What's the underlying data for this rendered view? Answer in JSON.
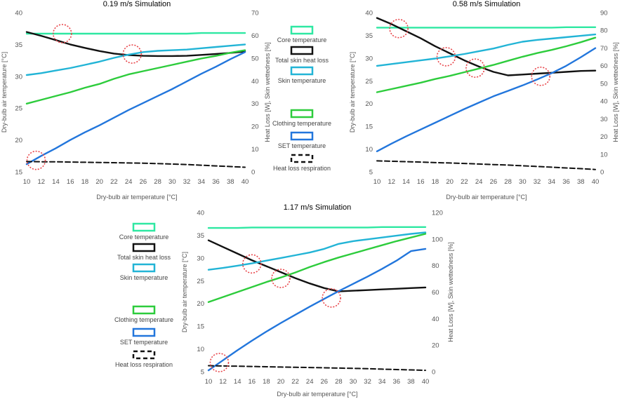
{
  "legend": [
    {
      "id": "core",
      "label": "Core temperature",
      "color": "#2ee8a2"
    },
    {
      "id": "skin_heat_loss",
      "label": "Total skin heat loss",
      "color": "#111111"
    },
    {
      "id": "skin_temp",
      "label": "Skin temperature",
      "color": "#22b4d6"
    },
    {
      "id": "clothing",
      "label": "Clothing temperature",
      "color": "#2dcc3c"
    },
    {
      "id": "set",
      "label": "SET temperature",
      "color": "#2276dc"
    },
    {
      "id": "respiration",
      "label": "Heat loss respiration",
      "color": "#111111",
      "dashed": true
    }
  ],
  "chart_data": [
    {
      "type": "line",
      "title": "0.19 m/s Simulation",
      "xlabel": "Dry-bulb air temperature [°C]",
      "ylabel": "Dry-bulb air temperature [°C]",
      "y2label": "Heat Loss [W], Skin wettedness [%]",
      "x": [
        10,
        12,
        14,
        16,
        18,
        20,
        22,
        24,
        26,
        28,
        30,
        32,
        34,
        36,
        38,
        40
      ],
      "xticks": [
        "10",
        "12",
        "14",
        "16",
        "18",
        "20",
        "22",
        "24",
        "26",
        "28",
        "30",
        "32",
        "34",
        "36",
        "38",
        "40"
      ],
      "ylim": [
        15,
        40
      ],
      "yticks": [
        "15",
        "20",
        "25",
        "30",
        "35",
        "40"
      ],
      "y2lim": [
        0,
        70
      ],
      "y2ticks": [
        "0",
        "10",
        "20",
        "30",
        "40",
        "50",
        "60",
        "70"
      ],
      "series": [
        {
          "id": "core",
          "axis": "left",
          "values": [
            36.7,
            36.7,
            36.7,
            36.7,
            36.7,
            36.7,
            36.7,
            36.7,
            36.7,
            36.7,
            36.7,
            36.7,
            36.8,
            36.8,
            36.8,
            36.8
          ]
        },
        {
          "id": "skin_heat_loss",
          "axis": "right",
          "values": [
            61.5,
            59.8,
            57.9,
            56.0,
            54.5,
            53.1,
            52.0,
            51.3,
            51.0,
            50.9,
            50.9,
            51.0,
            51.4,
            51.8,
            52.3,
            52.9
          ]
        },
        {
          "id": "skin_temp",
          "axis": "left",
          "values": [
            30.2,
            30.5,
            30.9,
            31.3,
            31.8,
            32.3,
            32.9,
            33.4,
            33.8,
            34.0,
            34.1,
            34.2,
            34.4,
            34.6,
            34.8,
            35.0
          ]
        },
        {
          "id": "clothing",
          "axis": "left",
          "values": [
            25.7,
            26.3,
            26.9,
            27.5,
            28.2,
            28.8,
            29.6,
            30.3,
            30.8,
            31.3,
            31.8,
            32.3,
            32.8,
            33.2,
            33.7,
            34.1
          ]
        },
        {
          "id": "set",
          "axis": "left",
          "values": [
            16.2,
            17.5,
            18.7,
            20.0,
            21.2,
            22.3,
            23.5,
            24.7,
            25.8,
            26.9,
            28.0,
            29.2,
            30.4,
            31.5,
            32.7,
            33.8
          ]
        },
        {
          "id": "respiration",
          "axis": "right",
          "values": [
            4.5,
            4.4,
            4.4,
            4.3,
            4.2,
            4.1,
            4.0,
            3.9,
            3.8,
            3.6,
            3.4,
            3.2,
            2.9,
            2.6,
            2.3,
            2.0
          ]
        }
      ],
      "circles": [
        {
          "x": 14.9,
          "y": 36.7
        },
        {
          "x": 24.5,
          "y": 33.5
        },
        {
          "x": 11.3,
          "y": 16.8
        }
      ]
    },
    {
      "type": "line",
      "title": "0.58 m/s Simulation",
      "xlabel": "Dry-bulb air temperature [°C]",
      "ylabel": "Dry-bulb air temperature [°C]",
      "y2label": "Heat Loss [W], Skin wettedness [%]",
      "x": [
        10,
        12,
        14,
        16,
        18,
        20,
        22,
        24,
        26,
        28,
        30,
        32,
        34,
        36,
        38,
        40
      ],
      "xticks": [
        "10",
        "12",
        "14",
        "16",
        "18",
        "20",
        "22",
        "24",
        "26",
        "28",
        "30",
        "32",
        "34",
        "36",
        "38",
        "40"
      ],
      "ylim": [
        5,
        40
      ],
      "yticks": [
        "5",
        "10",
        "15",
        "20",
        "25",
        "30",
        "35",
        "40"
      ],
      "y2lim": [
        0,
        90
      ],
      "y2ticks": [
        "0",
        "10",
        "20",
        "30",
        "40",
        "50",
        "60",
        "70",
        "80",
        "90"
      ],
      "series": [
        {
          "id": "core",
          "axis": "left",
          "values": [
            36.7,
            36.7,
            36.7,
            36.7,
            36.7,
            36.7,
            36.7,
            36.7,
            36.7,
            36.7,
            36.7,
            36.7,
            36.7,
            36.8,
            36.8,
            36.8
          ]
        },
        {
          "id": "skin_heat_loss",
          "axis": "right",
          "values": [
            87.0,
            83.5,
            79.5,
            75.5,
            71.0,
            67.0,
            63.0,
            59.5,
            56.5,
            54.5,
            55.0,
            55.5,
            56.0,
            56.5,
            57.0,
            57.2
          ]
        },
        {
          "id": "skin_temp",
          "axis": "left",
          "values": [
            28.3,
            28.7,
            29.1,
            29.5,
            29.9,
            30.4,
            30.9,
            31.5,
            32.1,
            32.9,
            33.6,
            34.0,
            34.3,
            34.6,
            34.9,
            35.2
          ]
        },
        {
          "id": "clothing",
          "axis": "left",
          "values": [
            22.5,
            23.2,
            23.9,
            24.6,
            25.4,
            26.1,
            26.9,
            27.7,
            28.5,
            29.4,
            30.3,
            31.1,
            31.8,
            32.6,
            33.5,
            34.5
          ]
        },
        {
          "id": "set",
          "axis": "left",
          "values": [
            9.5,
            11.2,
            12.8,
            14.3,
            15.8,
            17.3,
            18.8,
            20.2,
            21.6,
            22.8,
            24.0,
            25.3,
            26.7,
            28.3,
            30.2,
            32.2
          ]
        },
        {
          "id": "respiration",
          "axis": "right",
          "values": [
            6.2,
            6.0,
            5.7,
            5.5,
            5.2,
            5.0,
            4.7,
            4.4,
            4.1,
            3.8,
            3.4,
            3.0,
            2.6,
            2.2,
            1.8,
            1.3
          ]
        }
      ],
      "circles": [
        {
          "x": 13.0,
          "y": 36.5
        },
        {
          "x": 19.5,
          "y": 30.3
        },
        {
          "x": 23.5,
          "y": 27.8
        },
        {
          "x": 32.5,
          "y": 26.0
        }
      ]
    },
    {
      "type": "line",
      "title": "1.17 m/s Simulation",
      "xlabel": "Dry-bulb air temperature [°C]",
      "ylabel": "Dry-bulb air temperature [°C]",
      "y2label": "Heat Loss [W], Skin wettedness [%]",
      "x": [
        10,
        12,
        14,
        16,
        18,
        20,
        22,
        24,
        26,
        28,
        30,
        32,
        34,
        36,
        38,
        40
      ],
      "xticks": [
        "10",
        "12",
        "14",
        "16",
        "18",
        "20",
        "22",
        "24",
        "26",
        "28",
        "30",
        "32",
        "34",
        "36",
        "38",
        "40"
      ],
      "ylim": [
        5,
        40
      ],
      "yticks": [
        "5",
        "10",
        "15",
        "20",
        "25",
        "30",
        "35",
        "40"
      ],
      "y2lim": [
        0,
        120
      ],
      "y2ticks": [
        "0",
        "20",
        "40",
        "60",
        "80",
        "100",
        "120"
      ],
      "series": [
        {
          "id": "core",
          "axis": "left",
          "values": [
            36.6,
            36.6,
            36.6,
            36.7,
            36.7,
            36.7,
            36.7,
            36.7,
            36.7,
            36.7,
            36.7,
            36.7,
            36.8,
            36.8,
            36.8,
            36.8
          ]
        },
        {
          "id": "skin_heat_loss",
          "axis": "right",
          "values": [
            99.0,
            94.0,
            89.0,
            84.0,
            79.5,
            75.0,
            70.5,
            66.5,
            63.0,
            60.5,
            61.0,
            61.5,
            62.0,
            62.5,
            63.0,
            63.5
          ]
        },
        {
          "id": "skin_temp",
          "axis": "left",
          "values": [
            27.4,
            27.8,
            28.3,
            28.8,
            29.4,
            30.0,
            30.6,
            31.2,
            32.0,
            33.1,
            33.7,
            34.1,
            34.5,
            34.9,
            35.3,
            35.6
          ]
        },
        {
          "id": "clothing",
          "axis": "left",
          "values": [
            20.3,
            21.4,
            22.5,
            23.6,
            24.7,
            25.7,
            26.8,
            28.0,
            29.1,
            30.1,
            31.0,
            31.9,
            32.8,
            33.7,
            34.5,
            35.3
          ]
        },
        {
          "id": "set",
          "axis": "left",
          "values": [
            5.3,
            7.5,
            9.7,
            11.8,
            13.8,
            15.7,
            17.5,
            19.3,
            21.0,
            22.7,
            24.3,
            25.9,
            27.6,
            29.4,
            31.5,
            32.0
          ]
        },
        {
          "id": "respiration",
          "axis": "right",
          "values": [
            4.5,
            4.3,
            4.1,
            3.9,
            3.7,
            3.5,
            3.3,
            3.1,
            2.9,
            2.7,
            2.5,
            2.2,
            1.9,
            1.6,
            1.3,
            1.0
          ]
        }
      ],
      "circles": [
        {
          "x": 11.5,
          "y": 7.0
        },
        {
          "x": 16.0,
          "y": 28.7
        },
        {
          "x": 20.0,
          "y": 25.5
        },
        {
          "x": 27.0,
          "y": 21.2
        }
      ]
    }
  ]
}
